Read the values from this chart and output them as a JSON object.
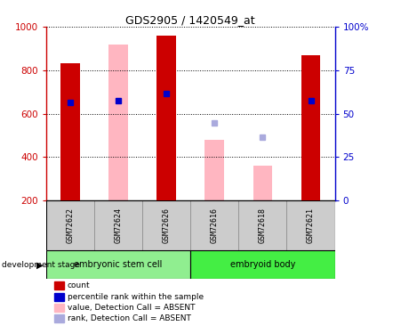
{
  "title": "GDS2905 / 1420549_at",
  "samples": [
    "GSM72622",
    "GSM72624",
    "GSM72626",
    "GSM72616",
    "GSM72618",
    "GSM72621"
  ],
  "group_info": [
    {
      "label": "embryonic stem cell",
      "start": 0,
      "end": 2,
      "color": "#90EE90"
    },
    {
      "label": "embryoid body",
      "start": 3,
      "end": 5,
      "color": "#44EE44"
    }
  ],
  "bar_bottom": 200,
  "ylim": [
    200,
    1000
  ],
  "y2lim": [
    0,
    100
  ],
  "yticks": [
    200,
    400,
    600,
    800,
    1000
  ],
  "y2ticks": [
    0,
    25,
    50,
    75,
    100
  ],
  "y2ticklabels": [
    "0",
    "25",
    "50",
    "75",
    "100%"
  ],
  "count_bars": {
    "GSM72622": 830,
    "GSM72624": null,
    "GSM72626": 960,
    "GSM72616": null,
    "GSM72618": null,
    "GSM72621": 870
  },
  "absent_value_bars": {
    "GSM72622": null,
    "GSM72624": 918,
    "GSM72626": null,
    "GSM72616": 480,
    "GSM72618": 360,
    "GSM72621": null
  },
  "percentile_rank_markers": {
    "GSM72622": 650,
    "GSM72624": 658,
    "GSM72626": 692,
    "GSM72616": null,
    "GSM72618": null,
    "GSM72621": 660
  },
  "absent_rank_markers": {
    "GSM72622": null,
    "GSM72624": null,
    "GSM72626": null,
    "GSM72616": 558,
    "GSM72618": 493,
    "GSM72621": null
  },
  "colors": {
    "count_bar": "#CC0000",
    "percentile_rank": "#0000CC",
    "absent_value_bar": "#FFB6C1",
    "absent_rank_marker": "#AAAADD",
    "left_axis": "#CC0000",
    "right_axis": "#0000CC"
  },
  "legend_items": [
    {
      "label": "count",
      "color": "#CC0000"
    },
    {
      "label": "percentile rank within the sample",
      "color": "#0000CC"
    },
    {
      "label": "value, Detection Call = ABSENT",
      "color": "#FFB6C1"
    },
    {
      "label": "rank, Detection Call = ABSENT",
      "color": "#AAAADD"
    }
  ],
  "bar_width": 0.4
}
